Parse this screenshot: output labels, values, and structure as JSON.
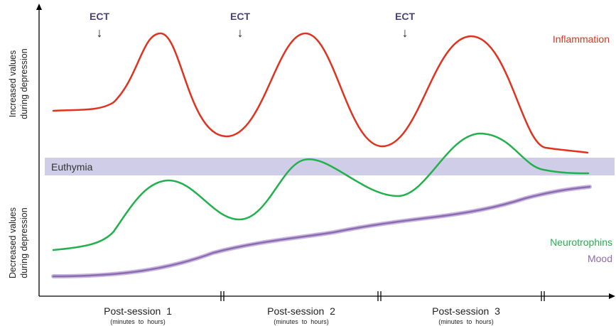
{
  "y_axis": {
    "upper_label_line1": "Increased values",
    "upper_label_line2": "during depression",
    "lower_label_line1": "Decreased values",
    "lower_label_line2": "during depression"
  },
  "band": {
    "label": "Euthymia",
    "color": "#cfcde8"
  },
  "ect_markers": [
    {
      "label": "ECT",
      "arrow": "↓"
    },
    {
      "label": "ECT",
      "arrow": "↓"
    },
    {
      "label": "ECT",
      "arrow": "↓"
    }
  ],
  "series": [
    {
      "name": "Inflammation",
      "color": "#e0321e"
    },
    {
      "name": "Neurotrophins",
      "color": "#22b14c"
    },
    {
      "name": "Mood",
      "color": "#8d6bb1"
    }
  ],
  "sessions": [
    {
      "label": "Post-session  1",
      "sub": "(minutes  to  hours)"
    },
    {
      "label": "Post-session  2",
      "sub": "(minutes  to  hours)"
    },
    {
      "label": "Post-session  3",
      "sub": "(minutes  to  hours)"
    }
  ]
}
